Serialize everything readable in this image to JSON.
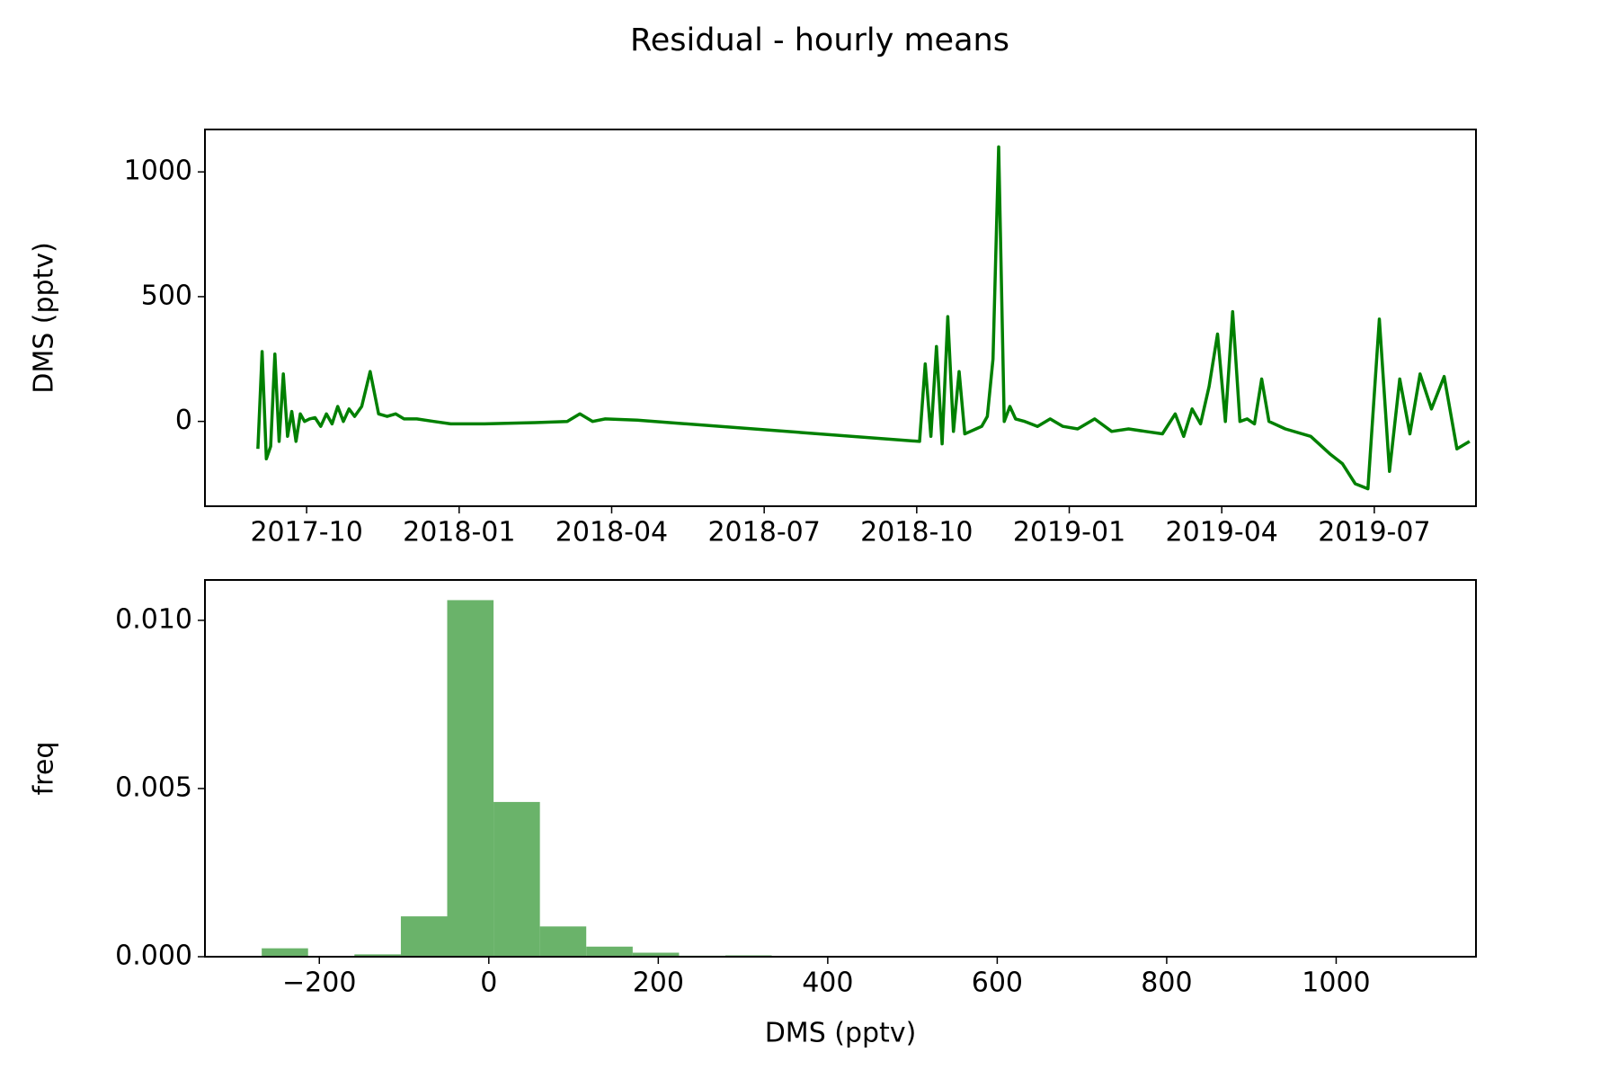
{
  "chart_data": [
    {
      "type": "line",
      "title": "Residual - hourly means",
      "ylabel": "DMS (pptv)",
      "x": [
        "2017-09",
        "2017-09",
        "2017-09",
        "2017-09",
        "2017-09",
        "2017-09",
        "2017-09",
        "2017-09",
        "2017-09",
        "2017-09",
        "2017-09",
        "2017-09",
        "2017-10",
        "2017-10",
        "2017-10",
        "2017-10",
        "2017-10",
        "2017-10",
        "2017-10",
        "2017-10",
        "2017-10",
        "2017-11",
        "2017-11",
        "2017-11",
        "2017-11",
        "2017-11",
        "2017-11",
        "2017-12",
        "2017-12",
        "2017-12",
        "2018-01",
        "2018-02",
        "2018-03",
        "2018-03",
        "2018-03",
        "2018-03",
        "2018-04",
        "2018-10",
        "2018-10",
        "2018-10",
        "2018-10",
        "2018-10",
        "2018-10",
        "2018-10",
        "2018-10",
        "2018-10",
        "2018-11",
        "2018-11",
        "2018-11",
        "2018-11",
        "2018-11",
        "2018-11",
        "2018-11",
        "2018-11",
        "2018-11",
        "2018-12",
        "2018-12",
        "2018-12",
        "2018-12",
        "2019-01",
        "2019-01",
        "2019-01",
        "2019-02",
        "2019-02",
        "2019-02",
        "2019-03",
        "2019-03",
        "2019-03",
        "2019-03",
        "2019-03",
        "2019-03",
        "2019-04",
        "2019-04",
        "2019-04",
        "2019-04",
        "2019-04",
        "2019-04",
        "2019-04",
        "2019-05",
        "2019-05",
        "2019-06",
        "2019-06",
        "2019-06",
        "2019-06",
        "2019-07",
        "2019-07",
        "2019-07",
        "2019-07",
        "2019-07",
        "2019-08",
        "2019-08",
        "2019-08",
        "2019-08"
      ],
      "series": [
        {
          "name": "DMS",
          "color": "#008000",
          "values": [
            -110,
            280,
            -150,
            -100,
            270,
            -80,
            190,
            -60,
            40,
            -80,
            30,
            0,
            10,
            15,
            -20,
            30,
            -10,
            60,
            0,
            50,
            20,
            60,
            200,
            30,
            20,
            30,
            10,
            10,
            0,
            -10,
            -10,
            -5,
            0,
            30,
            0,
            10,
            5,
            -80,
            230,
            -60,
            300,
            -90,
            420,
            -40,
            200,
            -50,
            -40,
            -30,
            -20,
            20,
            250,
            1100,
            0,
            60,
            10,
            0,
            -20,
            10,
            -20,
            -30,
            10,
            -40,
            -30,
            -40,
            -50,
            30,
            -60,
            50,
            -10,
            140,
            350,
            0,
            440,
            0,
            10,
            -10,
            170,
            0,
            -30,
            -60,
            -130,
            -170,
            -250,
            -270,
            410,
            -200,
            170,
            -50,
            190,
            50,
            180,
            -110,
            -80
          ]
        }
      ],
      "xlim": [
        "2017-08",
        "2019-09"
      ],
      "xticks": [
        "2017-10",
        "2018-01",
        "2018-04",
        "2018-07",
        "2018-10",
        "2019-01",
        "2019-04",
        "2019-07"
      ],
      "ylim": [
        -340,
        1170
      ],
      "yticks": [
        0,
        500,
        1000
      ]
    },
    {
      "type": "histogram",
      "xlabel": "DMS (pptv)",
      "ylabel": "freq",
      "color": "#6ab36a",
      "bins": [
        -268,
        -213.3,
        -158.6,
        -103.8,
        -49.1,
        5.6,
        60.3,
        115.0,
        169.8,
        224.5,
        279.2,
        333.9,
        388.6,
        443.4,
        498.1,
        552.8,
        607.5,
        662.2,
        717.0,
        771.7,
        826.4,
        881.1,
        935.8,
        990.6,
        1045.3,
        1100
      ],
      "values": [
        0.00025,
        0,
        7e-05,
        0.0012,
        0.0106,
        0.0046,
        0.0009,
        0.0003,
        0.00012,
        3e-05,
        4e-05,
        2e-05,
        0,
        0,
        0,
        0,
        0,
        0,
        0,
        0,
        0,
        0,
        0,
        0,
        5e-06
      ],
      "xlim": [
        -335,
        1165
      ],
      "xticks": [
        {
          "value": -200,
          "label": "−200"
        },
        0,
        200,
        400,
        600,
        800,
        1000
      ],
      "ylim": [
        0,
        0.0112
      ],
      "yticks": [
        {
          "value": 0,
          "label": "0.000"
        },
        {
          "value": 0.005,
          "label": "0.005"
        },
        {
          "value": 0.01,
          "label": "0.010"
        }
      ]
    }
  ]
}
